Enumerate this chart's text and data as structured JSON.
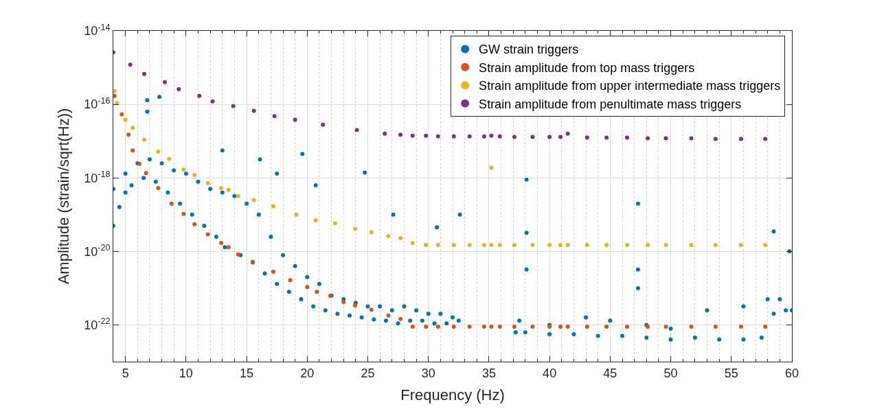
{
  "chart_data": {
    "type": "scatter",
    "xlabel": "Frequency (Hz)",
    "ylabel": "Amplitude (strain/sqrt(Hz))",
    "xlim": [
      4,
      60
    ],
    "xticks": [
      5,
      10,
      15,
      20,
      25,
      30,
      35,
      40,
      45,
      50,
      55,
      60
    ],
    "ylim": [
      1e-23,
      1e-14
    ],
    "yticks": [
      {
        "value": 1e-14,
        "label": "10$^{-14}$"
      },
      {
        "value": 1e-16,
        "label": "10$^{-16}$"
      },
      {
        "value": 1e-18,
        "label": "10$^{-18}$"
      },
      {
        "value": 1e-20,
        "label": "10$^{-20}$"
      },
      {
        "value": 1e-22,
        "label": "10$^{-22}$"
      }
    ],
    "log": "y",
    "grid": true,
    "legend": "top right",
    "marker": "circle",
    "series": [
      {
        "name": "GW strain triggers",
        "color": "#0072bd",
        "x": [
          4,
          4.5,
          5,
          5.5,
          6.5,
          7.5,
          8.5,
          9.5,
          10.5,
          11.5,
          12.5,
          13.2,
          14.5,
          15.5,
          16.5,
          17.5,
          18.5,
          19.5,
          20.5,
          21.5,
          22.5,
          23.5,
          24.5,
          25.5,
          26.5,
          27.5,
          28.5,
          29.5,
          30.5,
          31.5,
          32.5,
          37.2,
          38,
          40,
          42,
          44,
          46,
          48,
          50,
          52,
          54,
          56,
          57.5,
          58.5,
          59.5,
          4,
          5,
          6,
          7,
          8,
          9,
          10,
          11,
          12,
          13,
          14,
          15,
          16,
          17,
          18,
          19,
          20,
          21,
          22,
          23,
          24,
          25,
          26,
          27,
          28,
          29,
          30,
          31,
          32,
          37.5,
          40,
          43,
          45,
          48,
          50,
          53,
          56,
          58,
          59,
          60,
          6.8,
          7.8,
          6.8,
          13.0,
          16.1,
          17.5,
          19.6,
          20.7,
          24.75,
          27.1,
          30.7,
          32.6,
          38.1,
          38.1,
          38.1,
          47.3,
          47.3,
          47.3,
          58.5,
          59.8
        ],
        "values": [
          5e-20,
          1.6e-19,
          4e-19,
          6.3e-19,
          1e-18,
          7.9e-19,
          4e-19,
          2e-19,
          1e-19,
          5e-20,
          2.5e-20,
          1.3e-20,
          7.9e-21,
          5e-21,
          2.5e-21,
          1.3e-21,
          7.9e-22,
          5e-22,
          3.2e-22,
          2.5e-22,
          2e-22,
          1.8e-22,
          1.6e-22,
          1.4e-22,
          1.3e-22,
          1.1e-22,
          1.3e-22,
          1.3e-22,
          1.1e-22,
          1.1e-22,
          1.3e-22,
          6.3e-23,
          6.3e-23,
          5.6e-23,
          5.6e-23,
          5e-23,
          5e-23,
          4.5e-23,
          4e-23,
          4.5e-23,
          4e-23,
          4e-23,
          4.5e-23,
          2e-22,
          2.5e-22,
          5e-19,
          1.3e-18,
          2.5e-18,
          3.2e-18,
          2.5e-18,
          1.6e-18,
          1.3e-18,
          7.9e-19,
          5e-19,
          4e-19,
          3.2e-19,
          2e-19,
          1e-19,
          2.5e-20,
          7.9e-21,
          4e-21,
          2e-21,
          1.3e-21,
          6.3e-22,
          5e-22,
          4e-22,
          3.2e-22,
          3.2e-22,
          2.5e-22,
          3.2e-22,
          2.5e-22,
          2e-22,
          2e-22,
          1.6e-22,
          1.3e-22,
          1e-22,
          1.6e-22,
          1.3e-22,
          1e-22,
          7.9e-23,
          2.5e-22,
          3.2e-22,
          5e-22,
          5e-22,
          2.5e-22,
          1.3e-16,
          1.6e-16,
          6.3e-17,
          5.6e-18,
          3.2e-18,
          1.3e-18,
          4.5e-18,
          6.3e-19,
          1.4e-18,
          1e-19,
          4.5e-20,
          1e-19,
          9e-19,
          3.2e-20,
          3.2e-21,
          2e-19,
          3.2e-21,
          1e-21,
          3.5e-20,
          1e-20
        ]
      },
      {
        "name": "Strain amplitude from top mass triggers",
        "color": "#d95319",
        "x": [
          4.1,
          4.7,
          5.25,
          5.6,
          6.15,
          6.7,
          7.7,
          8.8,
          9.8,
          10.7,
          11.8,
          12.9,
          13.5,
          14.3,
          15.5,
          17.2,
          18.6,
          20.0,
          20.8,
          21.9,
          23.0,
          23.95,
          25.3,
          26.7,
          27.7,
          28.7,
          29.8,
          30.8,
          32.1,
          33.4,
          34.6,
          35.2,
          35.9,
          37.1,
          38.6,
          40.0,
          40.9,
          41.5,
          43.1,
          44.7,
          46.4,
          48.1,
          49.6,
          51.7,
          53.7,
          55.8,
          57.8
        ],
        "values": [
          1.7e-16,
          5.4e-17,
          1.5e-17,
          5.6e-18,
          2.4e-18,
          1.35e-18,
          5.3e-19,
          2e-19,
          1.05e-19,
          5.5e-20,
          2.9e-20,
          1.7e-20,
          1.3e-20,
          8.3e-21,
          5.2e-21,
          2.8e-21,
          1.65e-21,
          1.07e-21,
          7.9e-22,
          6.2e-22,
          4.2e-22,
          3.4e-22,
          2.6e-22,
          1.8e-22,
          1.45e-22,
          9e-23,
          9e-23,
          9e-23,
          9e-23,
          9e-23,
          9e-23,
          9e-23,
          9e-23,
          9e-23,
          9e-23,
          9e-23,
          9e-23,
          9e-23,
          9e-23,
          9e-23,
          9e-23,
          9e-23,
          9e-23,
          9e-23,
          9e-23,
          9e-23,
          9e-23
        ]
      },
      {
        "name": "Strain amplitude from upper intermediate mass triggers",
        "color": "#edb120",
        "x": [
          4.1,
          4.3,
          5.0,
          5.6,
          6.55,
          7.7,
          8.6,
          9.8,
          10.7,
          11.8,
          12.9,
          13.5,
          14.3,
          15.6,
          17.2,
          19.1,
          20.7,
          22.3,
          23.95,
          25.3,
          26.7,
          27.7,
          28.7,
          29.8,
          30.8,
          32.1,
          33.4,
          34.6,
          35.2,
          35.2,
          35.9,
          37.1,
          38.6,
          40.0,
          40.9,
          41.5,
          43.1,
          44.7,
          46.4,
          48.1,
          49.6,
          51.7,
          53.7,
          55.8,
          57.8
        ],
        "values": [
          2.3e-16,
          1.1e-16,
          3.8e-17,
          2.3e-17,
          1.1e-17,
          5.2e-18,
          3.3e-18,
          1.7e-18,
          1.2e-18,
          7.2e-19,
          5.3e-19,
          4.7e-19,
          3.2e-19,
          2.5e-19,
          1.7e-19,
          1e-19,
          7e-20,
          5.8e-20,
          4.1e-20,
          3.3e-20,
          2.6e-20,
          2.3e-20,
          1.7e-20,
          1.5e-20,
          1.5e-20,
          1.5e-20,
          1.5e-20,
          1.5e-20,
          1.5e-20,
          1.9e-18,
          1.5e-20,
          1.5e-20,
          1.5e-20,
          1.5e-20,
          1.5e-20,
          1.5e-20,
          1.5e-20,
          1.5e-20,
          1.5e-20,
          1.5e-20,
          1.5e-20,
          1.5e-20,
          1.5e-20,
          1.5e-20,
          1.5e-20
        ]
      },
      {
        "name": "Strain amplitude from penultimate mass triggers",
        "color": "#7e2f8e",
        "x": [
          4.0,
          5.4,
          6.55,
          8.25,
          9.4,
          11.1,
          12.2,
          13.9,
          15.6,
          17.3,
          19.0,
          21.3,
          24.1,
          26.4,
          27.7,
          28.7,
          29.8,
          30.8,
          32.1,
          33.4,
          34.6,
          35.2,
          35.9,
          37.1,
          38.6,
          40.0,
          40.9,
          41.5,
          43.1,
          44.7,
          46.4,
          48.1,
          49.6,
          51.7,
          53.7,
          55.8,
          57.8
        ],
        "values": [
          2.6e-15,
          1.2e-15,
          6.7e-16,
          4e-16,
          2.6e-16,
          1.7e-16,
          1.2e-16,
          9e-17,
          6.7e-17,
          4.8e-17,
          3.8e-17,
          2.8e-17,
          2e-17,
          1.6e-17,
          1.5e-17,
          1.4e-17,
          1.4e-17,
          1.35e-17,
          1.35e-17,
          1.35e-17,
          1.35e-17,
          1.4e-17,
          1.35e-17,
          1.3e-17,
          1.3e-17,
          1.3e-17,
          1.3e-17,
          1.6e-17,
          1.25e-17,
          1.25e-17,
          1.25e-17,
          1.2e-17,
          1.2e-17,
          1.2e-17,
          1.15e-17,
          1.15e-17,
          1.15e-17
        ]
      }
    ]
  }
}
